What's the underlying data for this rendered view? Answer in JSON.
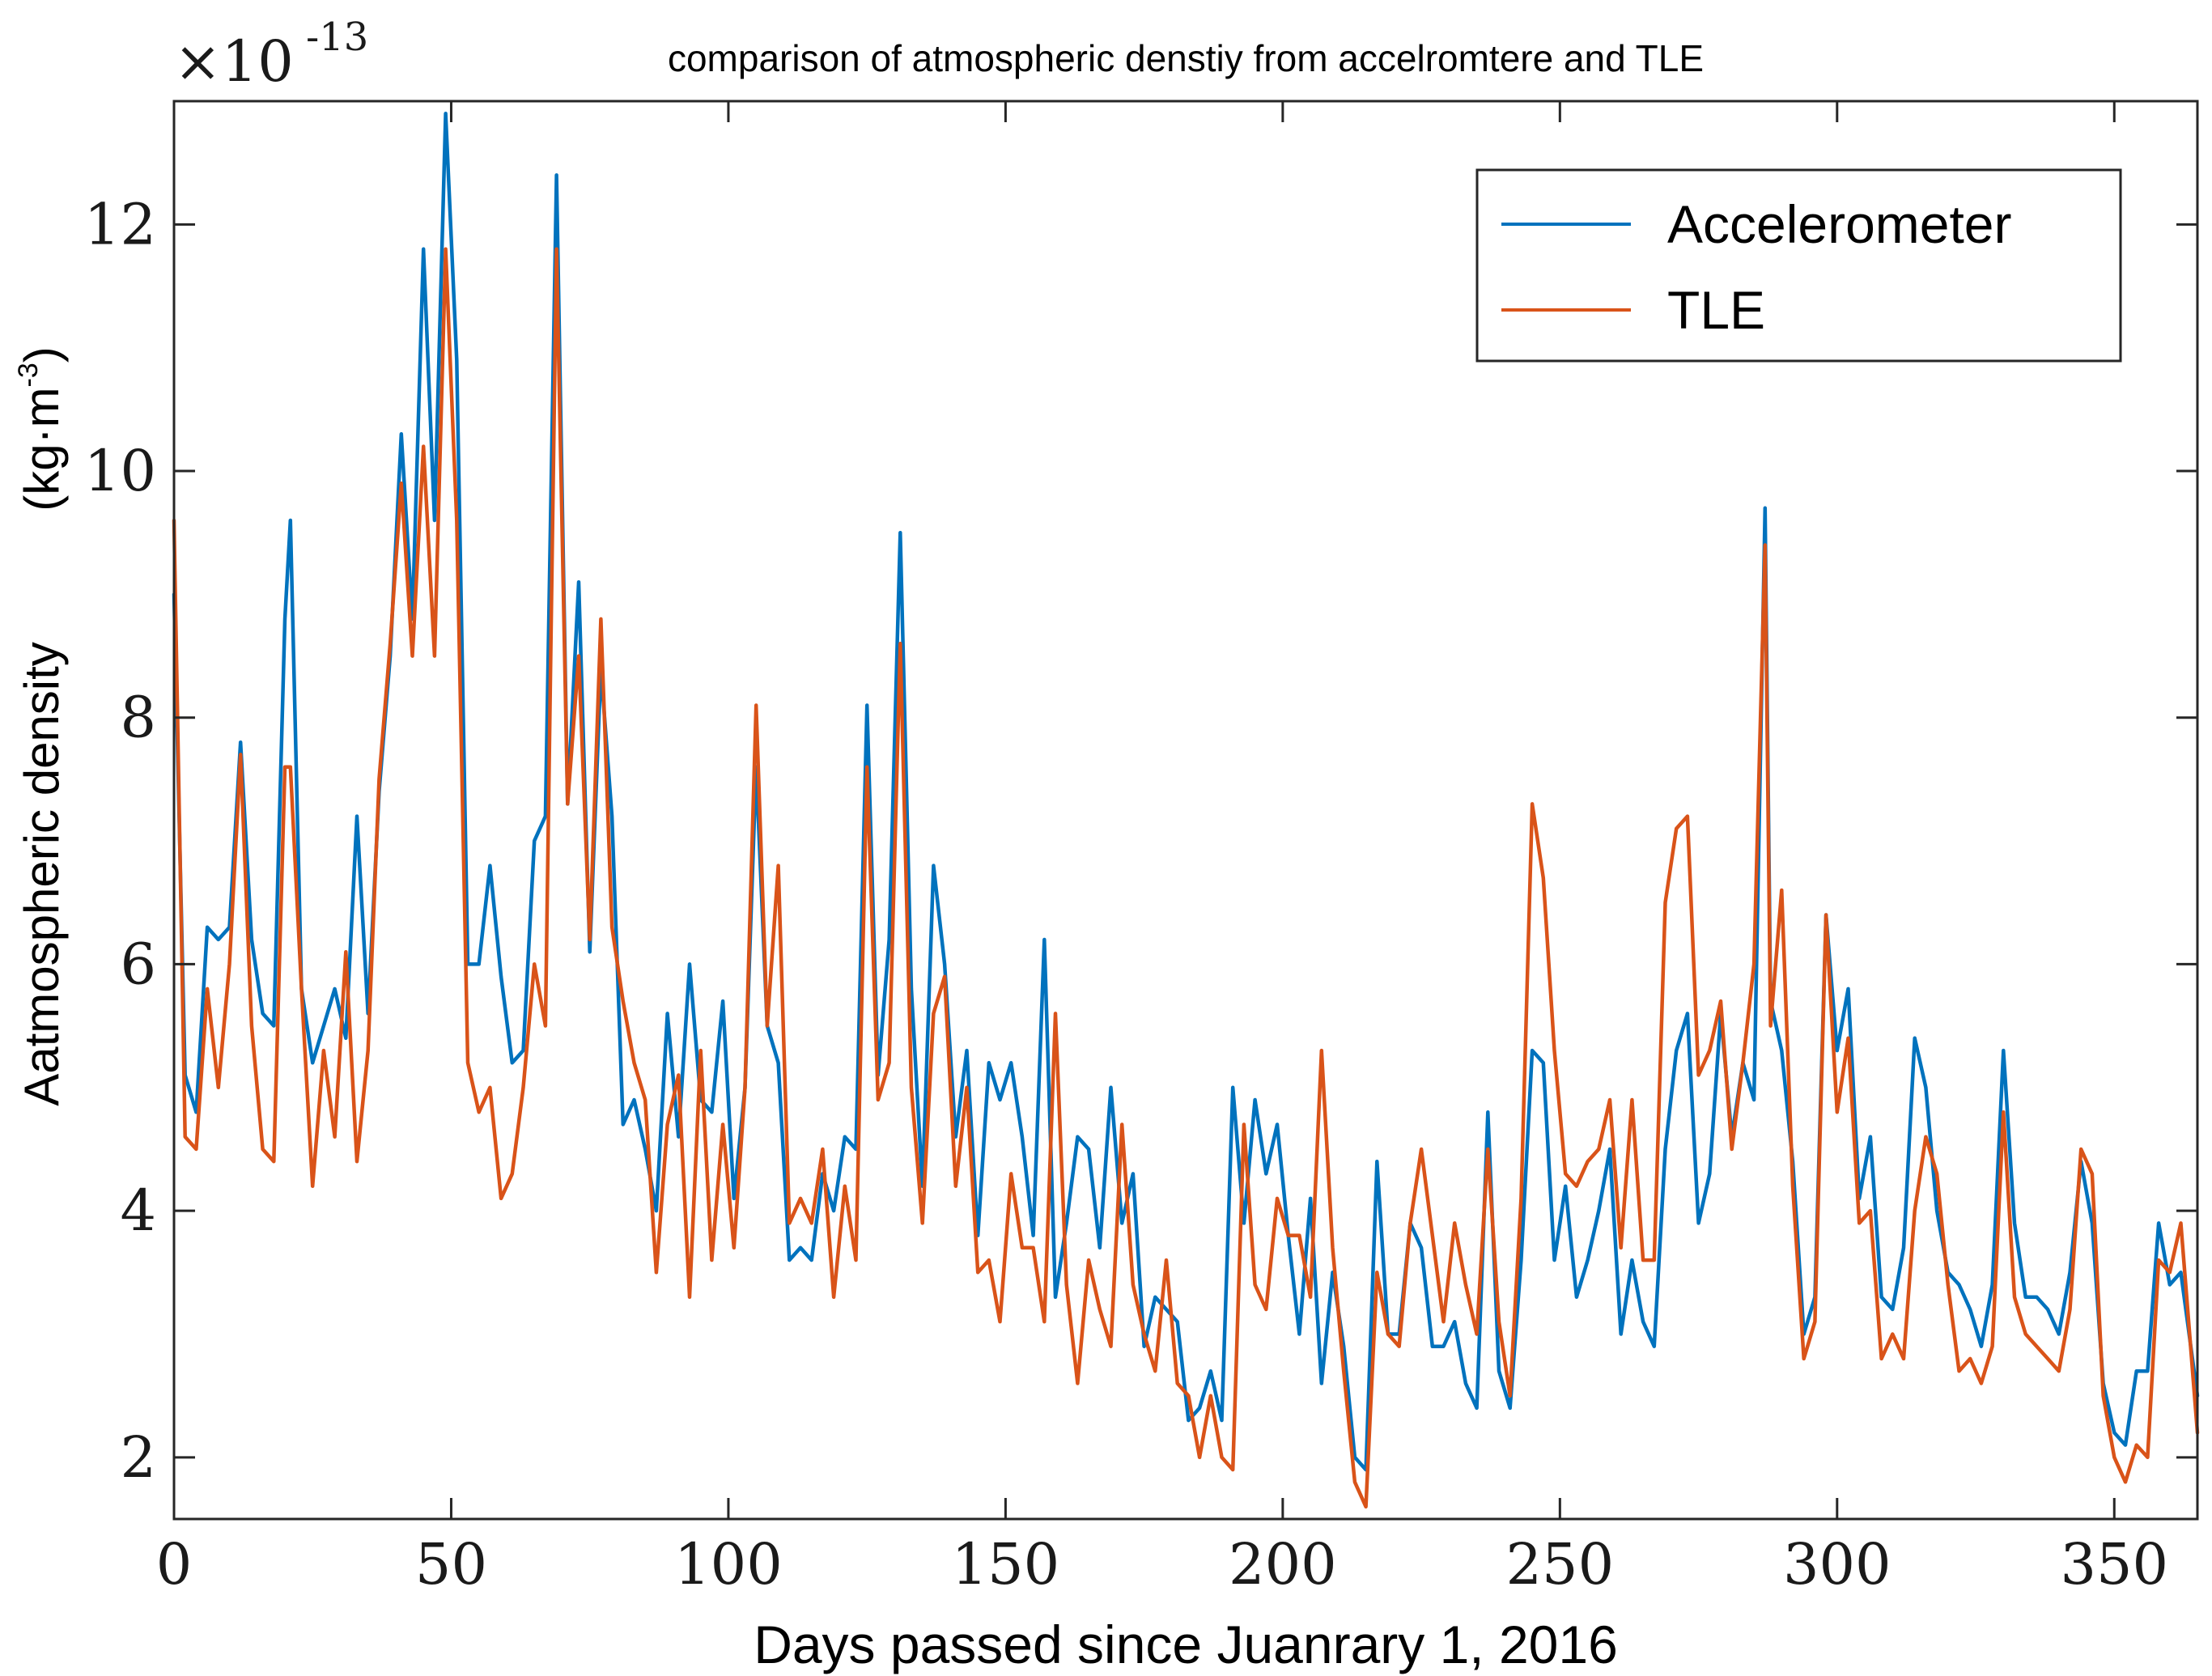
{
  "chart_data": {
    "type": "line",
    "title": "comparison of atmospheric denstiy from accelromtere and TLE",
    "xlabel": "Days passed since Juanrary 1, 2016",
    "ylabel": "Aatmospheric density",
    "ylabel_unit_base": "(kg·m",
    "ylabel_unit_exp": "-3",
    "ylabel_unit_close": ")",
    "y_multiplier_base": "×10",
    "y_multiplier_exp": "-13",
    "xlim": [
      0,
      365
    ],
    "ylim": [
      1.5,
      13.0
    ],
    "xticks": [
      0,
      50,
      100,
      150,
      200,
      250,
      300,
      350
    ],
    "yticks": [
      2,
      4,
      6,
      8,
      10,
      12
    ],
    "legend_position": "top-right",
    "series": [
      {
        "name": "Accelerometer",
        "color": "#0072BD",
        "x": [
          0,
          2,
          4,
          6,
          8,
          10,
          12,
          14,
          16,
          18,
          20,
          21,
          23,
          25,
          27,
          29,
          31,
          33,
          35,
          37,
          39,
          41,
          43,
          45,
          47,
          49,
          51,
          53,
          55,
          57,
          59,
          61,
          63,
          65,
          67,
          69,
          71,
          73,
          75,
          77,
          79,
          81,
          83,
          85,
          87,
          89,
          91,
          93,
          95,
          97,
          99,
          101,
          103,
          105,
          107,
          109,
          111,
          113,
          115,
          117,
          119,
          121,
          123,
          125,
          127,
          129,
          131,
          133,
          135,
          137,
          139,
          141,
          143,
          145,
          147,
          149,
          151,
          153,
          155,
          157,
          159,
          161,
          163,
          165,
          167,
          169,
          171,
          173,
          175,
          177,
          179,
          181,
          183,
          185,
          187,
          189,
          191,
          193,
          195,
          197,
          199,
          201,
          203,
          205,
          207,
          209,
          211,
          213,
          215,
          217,
          219,
          221,
          223,
          225,
          227,
          229,
          231,
          233,
          235,
          237,
          239,
          241,
          243,
          245,
          247,
          249,
          251,
          253,
          255,
          257,
          259,
          261,
          263,
          265,
          267,
          269,
          271,
          273,
          275,
          277,
          279,
          281,
          283,
          285,
          287,
          288,
          290,
          292,
          294,
          296,
          298,
          300,
          302,
          304,
          306,
          308,
          310,
          312,
          314,
          316,
          318,
          320,
          322,
          324,
          326,
          328,
          330,
          332,
          334,
          336,
          338,
          340,
          342,
          344,
          346,
          348,
          350,
          352,
          354,
          356,
          358,
          360,
          362,
          365
        ],
        "values": [
          9.0,
          5.1,
          4.8,
          6.3,
          6.2,
          6.3,
          7.8,
          6.2,
          5.6,
          5.5,
          8.8,
          9.6,
          5.8,
          5.2,
          5.5,
          5.8,
          5.4,
          7.2,
          5.6,
          7.4,
          8.5,
          10.3,
          8.8,
          11.8,
          9.6,
          12.9,
          10.9,
          6.0,
          6.0,
          6.8,
          5.9,
          5.2,
          5.3,
          7.0,
          7.2,
          12.4,
          7.3,
          9.1,
          6.1,
          8.4,
          7.2,
          4.7,
          4.9,
          4.5,
          4.0,
          5.6,
          4.6,
          6.0,
          4.9,
          4.8,
          5.7,
          4.1,
          5.0,
          7.6,
          5.5,
          5.2,
          3.6,
          3.7,
          3.6,
          4.3,
          4.0,
          4.6,
          4.5,
          8.1,
          5.1,
          6.2,
          9.5,
          5.8,
          4.2,
          6.8,
          6.0,
          4.6,
          5.3,
          3.8,
          5.2,
          4.9,
          5.2,
          4.6,
          3.8,
          6.2,
          3.3,
          3.9,
          4.6,
          4.5,
          3.7,
          5.0,
          3.9,
          4.3,
          2.9,
          3.3,
          3.2,
          3.1,
          2.3,
          2.4,
          2.7,
          2.3,
          5.0,
          3.9,
          4.9,
          4.3,
          4.7,
          3.8,
          3.0,
          4.1,
          2.6,
          3.5,
          2.9,
          2.0,
          1.9,
          4.4,
          3.0,
          3.0,
          3.9,
          3.7,
          2.9,
          2.9,
          3.1,
          2.6,
          2.4,
          4.8,
          2.7,
          2.4,
          3.6,
          5.3,
          5.2,
          3.6,
          4.2,
          3.3,
          3.6,
          4.0,
          4.5,
          3.0,
          3.6,
          3.1,
          2.9,
          4.5,
          5.3,
          5.6,
          3.9,
          4.3,
          5.6,
          4.6,
          5.2,
          4.9,
          9.7,
          5.7,
          5.3,
          4.4,
          3.0,
          3.3,
          6.4,
          5.3,
          5.8,
          4.1,
          4.6,
          3.3,
          3.2,
          3.7,
          5.4,
          5.0,
          4.0,
          3.5,
          3.4,
          3.2,
          2.9,
          3.4,
          5.3,
          3.9,
          3.3,
          3.3,
          3.2,
          3.0,
          3.5,
          4.4,
          3.9,
          2.6,
          2.2,
          2.1,
          2.7,
          2.7,
          3.9,
          3.4,
          3.5,
          2.5
        ]
      },
      {
        "name": "TLE",
        "color": "#D95319",
        "x": [
          0,
          2,
          4,
          6,
          8,
          10,
          12,
          14,
          16,
          18,
          20,
          21,
          23,
          25,
          27,
          29,
          31,
          33,
          35,
          37,
          39,
          41,
          43,
          45,
          47,
          49,
          51,
          53,
          55,
          57,
          59,
          61,
          63,
          65,
          67,
          69,
          71,
          73,
          75,
          77,
          79,
          81,
          83,
          85,
          87,
          89,
          91,
          93,
          95,
          97,
          99,
          101,
          103,
          105,
          107,
          109,
          111,
          113,
          115,
          117,
          119,
          121,
          123,
          125,
          127,
          129,
          131,
          133,
          135,
          137,
          139,
          141,
          143,
          145,
          147,
          149,
          151,
          153,
          155,
          157,
          159,
          161,
          163,
          165,
          167,
          169,
          171,
          173,
          175,
          177,
          179,
          181,
          183,
          185,
          187,
          189,
          191,
          193,
          195,
          197,
          199,
          201,
          203,
          205,
          207,
          209,
          211,
          213,
          215,
          217,
          219,
          221,
          223,
          225,
          227,
          229,
          231,
          233,
          235,
          237,
          239,
          241,
          243,
          245,
          247,
          249,
          251,
          253,
          255,
          257,
          259,
          261,
          263,
          265,
          267,
          269,
          271,
          273,
          275,
          277,
          279,
          281,
          283,
          285,
          287,
          288,
          290,
          292,
          294,
          296,
          298,
          300,
          302,
          304,
          306,
          308,
          310,
          312,
          314,
          316,
          318,
          320,
          322,
          324,
          326,
          328,
          330,
          332,
          334,
          336,
          338,
          340,
          342,
          344,
          346,
          348,
          350,
          352,
          354,
          356,
          358,
          360,
          362,
          365
        ],
        "values": [
          9.6,
          4.6,
          4.5,
          5.8,
          5.0,
          6.0,
          7.7,
          5.5,
          4.5,
          4.4,
          7.6,
          7.6,
          5.8,
          4.2,
          5.3,
          4.6,
          6.1,
          4.4,
          5.3,
          7.5,
          8.6,
          9.9,
          8.5,
          10.2,
          8.5,
          11.8,
          9.6,
          5.2,
          4.8,
          5.0,
          4.1,
          4.3,
          5.0,
          6.0,
          5.5,
          11.8,
          7.3,
          8.5,
          6.2,
          8.8,
          6.3,
          5.7,
          5.2,
          4.9,
          3.5,
          4.7,
          5.1,
          3.3,
          5.3,
          3.6,
          4.7,
          3.7,
          5.0,
          8.1,
          5.5,
          6.8,
          3.9,
          4.1,
          3.9,
          4.5,
          3.3,
          4.2,
          3.6,
          7.6,
          4.9,
          5.2,
          8.6,
          5.0,
          3.9,
          5.6,
          5.9,
          4.2,
          5.0,
          3.5,
          3.6,
          3.1,
          4.3,
          3.7,
          3.7,
          3.1,
          5.6,
          3.4,
          2.6,
          3.6,
          3.2,
          2.9,
          4.7,
          3.4,
          3.0,
          2.7,
          3.6,
          2.6,
          2.5,
          2.0,
          2.5,
          2.0,
          1.9,
          4.7,
          3.4,
          3.2,
          4.1,
          3.8,
          3.8,
          3.3,
          5.3,
          3.7,
          2.7,
          1.8,
          1.6,
          3.5,
          3.0,
          2.9,
          3.9,
          4.5,
          3.8,
          3.1,
          3.9,
          3.4,
          3.0,
          4.5,
          3.1,
          2.5,
          4.1,
          7.3,
          6.7,
          5.3,
          4.3,
          4.2,
          4.4,
          4.5,
          4.9,
          3.7,
          4.9,
          3.6,
          3.6,
          6.5,
          7.1,
          7.2,
          5.1,
          5.3,
          5.7,
          4.5,
          5.2,
          6.0,
          9.4,
          5.5,
          6.6,
          4.2,
          2.8,
          3.1,
          6.4,
          4.8,
          5.4,
          3.9,
          4.0,
          2.8,
          3.0,
          2.8,
          4.0,
          4.6,
          4.3,
          3.4,
          2.7,
          2.8,
          2.6,
          2.9,
          4.8,
          3.3,
          3.0,
          2.9,
          2.8,
          2.7,
          3.2,
          4.5,
          4.3,
          2.5,
          2.0,
          1.8,
          2.1,
          2.0,
          3.6,
          3.5,
          3.9,
          2.2
        ]
      }
    ]
  }
}
